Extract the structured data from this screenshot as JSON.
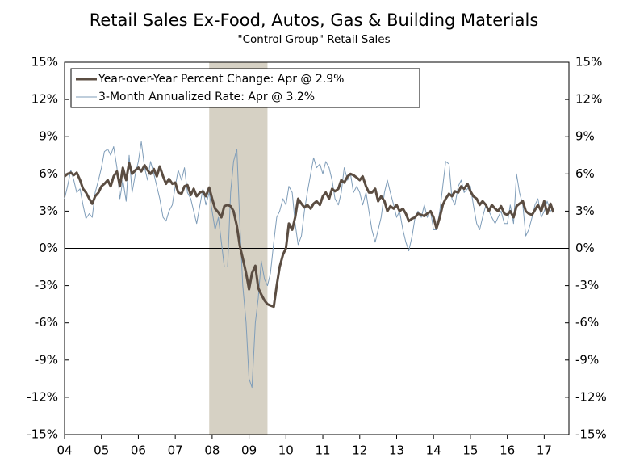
{
  "chart_data": {
    "type": "line",
    "title": "Retail Sales Ex-Food, Autos, Gas & Building Materials",
    "subtitle": "\"Control Group\" Retail Sales",
    "legend": "upper left",
    "grid": false,
    "shaded_ranges": [
      [
        2007.92,
        2009.5
      ]
    ],
    "shade_color": "#d6d1c4",
    "xlim": [
      2004,
      2017.67
    ],
    "xticks": [
      {
        "value": 2004,
        "label": "04"
      },
      {
        "value": 2005,
        "label": "05"
      },
      {
        "value": 2006,
        "label": "06"
      },
      {
        "value": 2007,
        "label": "07"
      },
      {
        "value": 2008,
        "label": "08"
      },
      {
        "value": 2009,
        "label": "09"
      },
      {
        "value": 2010,
        "label": "10"
      },
      {
        "value": 2011,
        "label": "11"
      },
      {
        "value": 2012,
        "label": "12"
      },
      {
        "value": 2013,
        "label": "13"
      },
      {
        "value": 2014,
        "label": "14"
      },
      {
        "value": 2015,
        "label": "15"
      },
      {
        "value": 2016,
        "label": "16"
      },
      {
        "value": 2017,
        "label": "17"
      }
    ],
    "ylim": [
      -15,
      15
    ],
    "yticks": [
      {
        "value": 15,
        "label": "15%"
      },
      {
        "value": 12,
        "label": "12%"
      },
      {
        "value": 9,
        "label": "9%"
      },
      {
        "value": 6,
        "label": "6%"
      },
      {
        "value": 3,
        "label": "3%"
      },
      {
        "value": 0,
        "label": "0%"
      },
      {
        "value": -3,
        "label": "-3%"
      },
      {
        "value": -6,
        "label": "-6%"
      },
      {
        "value": -9,
        "label": "-9%"
      },
      {
        "value": -12,
        "label": "-12%"
      },
      {
        "value": -15,
        "label": "-15%"
      }
    ],
    "y2lim": [
      -15,
      15
    ],
    "y2ticks": [
      {
        "value": 15,
        "label": "15%"
      },
      {
        "value": 12,
        "label": "12%"
      },
      {
        "value": 9,
        "label": "9%"
      },
      {
        "value": 6,
        "label": "6%"
      },
      {
        "value": 3,
        "label": "3%"
      },
      {
        "value": 0,
        "label": "0%"
      },
      {
        "value": -3,
        "label": "-3%"
      },
      {
        "value": -6,
        "label": "-6%"
      },
      {
        "value": -9,
        "label": "-9%"
      },
      {
        "value": -12,
        "label": "-12%"
      },
      {
        "value": -15,
        "label": "-15%"
      }
    ],
    "x": [
      2004.0,
      2004.08,
      2004.17,
      2004.25,
      2004.33,
      2004.42,
      2004.5,
      2004.58,
      2004.67,
      2004.75,
      2004.83,
      2004.92,
      2005.0,
      2005.08,
      2005.17,
      2005.25,
      2005.33,
      2005.42,
      2005.5,
      2005.58,
      2005.67,
      2005.75,
      2005.83,
      2005.92,
      2006.0,
      2006.08,
      2006.17,
      2006.25,
      2006.33,
      2006.42,
      2006.5,
      2006.58,
      2006.67,
      2006.75,
      2006.83,
      2006.92,
      2007.0,
      2007.08,
      2007.17,
      2007.25,
      2007.33,
      2007.42,
      2007.5,
      2007.58,
      2007.67,
      2007.75,
      2007.83,
      2007.92,
      2008.0,
      2008.08,
      2008.17,
      2008.25,
      2008.33,
      2008.42,
      2008.5,
      2008.58,
      2008.67,
      2008.75,
      2008.83,
      2008.92,
      2009.0,
      2009.08,
      2009.17,
      2009.25,
      2009.33,
      2009.42,
      2009.5,
      2009.58,
      2009.67,
      2009.75,
      2009.83,
      2009.92,
      2010.0,
      2010.08,
      2010.17,
      2010.25,
      2010.33,
      2010.42,
      2010.5,
      2010.58,
      2010.67,
      2010.75,
      2010.83,
      2010.92,
      2011.0,
      2011.08,
      2011.17,
      2011.25,
      2011.33,
      2011.42,
      2011.5,
      2011.58,
      2011.67,
      2011.75,
      2011.83,
      2011.92,
      2012.0,
      2012.08,
      2012.17,
      2012.25,
      2012.33,
      2012.42,
      2012.5,
      2012.58,
      2012.67,
      2012.75,
      2012.83,
      2012.92,
      2013.0,
      2013.08,
      2013.17,
      2013.25,
      2013.33,
      2013.42,
      2013.5,
      2013.58,
      2013.67,
      2013.75,
      2013.83,
      2013.92,
      2014.0,
      2014.08,
      2014.17,
      2014.25,
      2014.33,
      2014.42,
      2014.5,
      2014.58,
      2014.67,
      2014.75,
      2014.83,
      2014.92,
      2015.0,
      2015.08,
      2015.17,
      2015.25,
      2015.33,
      2015.42,
      2015.5,
      2015.58,
      2015.67,
      2015.75,
      2015.83,
      2015.92,
      2016.0,
      2016.08,
      2016.17,
      2016.25,
      2016.33,
      2016.42,
      2016.5,
      2016.58,
      2016.67,
      2016.75,
      2016.83,
      2016.92,
      2017.0,
      2017.08,
      2017.17,
      2017.25
    ],
    "series": [
      {
        "name": "3-Month Annualized Rate: Apr @ 3.2%",
        "color": "#7f9db9",
        "width": 1,
        "values": [
          4.0,
          5.0,
          6.3,
          5.5,
          4.5,
          4.8,
          3.5,
          2.4,
          2.8,
          2.5,
          4.5,
          5.5,
          6.5,
          7.8,
          8.0,
          7.5,
          8.2,
          6.5,
          4.0,
          5.5,
          3.8,
          7.5,
          4.5,
          6.0,
          7.0,
          8.6,
          6.5,
          5.5,
          7.0,
          6.0,
          5.0,
          4.0,
          2.5,
          2.2,
          3.0,
          3.5,
          5.0,
          6.3,
          5.5,
          6.5,
          4.5,
          4.0,
          3.0,
          2.0,
          3.5,
          4.8,
          3.5,
          4.5,
          3.0,
          1.5,
          2.5,
          0.5,
          -1.5,
          -1.5,
          4.5,
          7.0,
          8.0,
          2.0,
          -3.0,
          -6.0,
          -10.5,
          -11.2,
          -6.0,
          -4.0,
          -1.0,
          -2.5,
          -3.0,
          -2.0,
          0.5,
          2.5,
          3.0,
          4.0,
          3.5,
          5.0,
          4.5,
          2.0,
          0.3,
          1.0,
          3.0,
          4.5,
          6.0,
          7.3,
          6.5,
          6.8,
          6.0,
          7.0,
          6.5,
          5.5,
          4.0,
          3.5,
          4.5,
          6.5,
          5.5,
          6.0,
          4.5,
          5.0,
          4.5,
          3.5,
          4.5,
          3.0,
          1.5,
          0.5,
          1.5,
          2.5,
          4.5,
          5.5,
          4.5,
          3.5,
          2.5,
          3.0,
          1.5,
          0.5,
          -0.2,
          1.0,
          2.5,
          3.0,
          2.5,
          3.5,
          2.5,
          3.0,
          1.5,
          1.5,
          3.0,
          5.0,
          7.0,
          6.8,
          4.0,
          3.5,
          5.0,
          5.5,
          4.5,
          4.8,
          5.0,
          3.5,
          2.0,
          1.5,
          2.5,
          3.5,
          3.0,
          2.5,
          2.0,
          2.5,
          3.0,
          2.0,
          2.0,
          3.5,
          2.0,
          6.0,
          4.5,
          3.5,
          1.0,
          1.5,
          2.5,
          3.5,
          4.0,
          2.5,
          3.0,
          3.8,
          3.0,
          3.2
        ]
      },
      {
        "name": "Year-over-Year Percent Change: Apr @ 2.9%",
        "color": "#5b4d42",
        "width": 3,
        "values": [
          5.8,
          6.0,
          6.1,
          5.9,
          6.1,
          5.5,
          4.8,
          4.5,
          4.0,
          3.6,
          4.2,
          4.5,
          5.0,
          5.2,
          5.5,
          5.0,
          5.8,
          6.2,
          5.0,
          6.5,
          5.5,
          6.9,
          6.0,
          6.3,
          6.5,
          6.2,
          6.7,
          6.3,
          6.0,
          6.4,
          5.8,
          6.6,
          5.8,
          5.2,
          5.6,
          5.2,
          5.3,
          4.5,
          4.4,
          5.0,
          5.1,
          4.3,
          4.8,
          4.2,
          4.5,
          4.6,
          4.2,
          4.9,
          4.0,
          3.2,
          2.9,
          2.5,
          3.4,
          3.5,
          3.4,
          3.0,
          1.8,
          0.2,
          -0.8,
          -2.0,
          -3.3,
          -2.0,
          -1.4,
          -3.2,
          -3.7,
          -4.2,
          -4.5,
          -4.6,
          -4.7,
          -3.0,
          -1.5,
          -0.5,
          0.0,
          2.0,
          1.5,
          2.5,
          4.0,
          3.6,
          3.3,
          3.5,
          3.2,
          3.6,
          3.8,
          3.5,
          4.2,
          4.5,
          4.0,
          4.8,
          4.6,
          4.8,
          5.5,
          5.3,
          5.8,
          6.0,
          5.9,
          5.7,
          5.5,
          5.8,
          5.0,
          4.5,
          4.5,
          4.8,
          3.8,
          4.2,
          3.8,
          3.0,
          3.4,
          3.2,
          3.5,
          3.0,
          3.2,
          2.8,
          2.2,
          2.4,
          2.5,
          2.8,
          2.7,
          2.6,
          2.8,
          3.0,
          2.5,
          1.6,
          2.5,
          3.5,
          4.0,
          4.4,
          4.2,
          4.6,
          4.5,
          5.0,
          4.8,
          5.2,
          4.6,
          4.2,
          4.0,
          3.5,
          3.8,
          3.5,
          3.0,
          3.5,
          3.2,
          3.0,
          3.4,
          2.8,
          2.7,
          3.0,
          2.5,
          3.4,
          3.6,
          3.8,
          3.0,
          2.8,
          2.7,
          3.1,
          3.5,
          3.0,
          3.8,
          2.8,
          3.6,
          2.9
        ]
      }
    ]
  }
}
